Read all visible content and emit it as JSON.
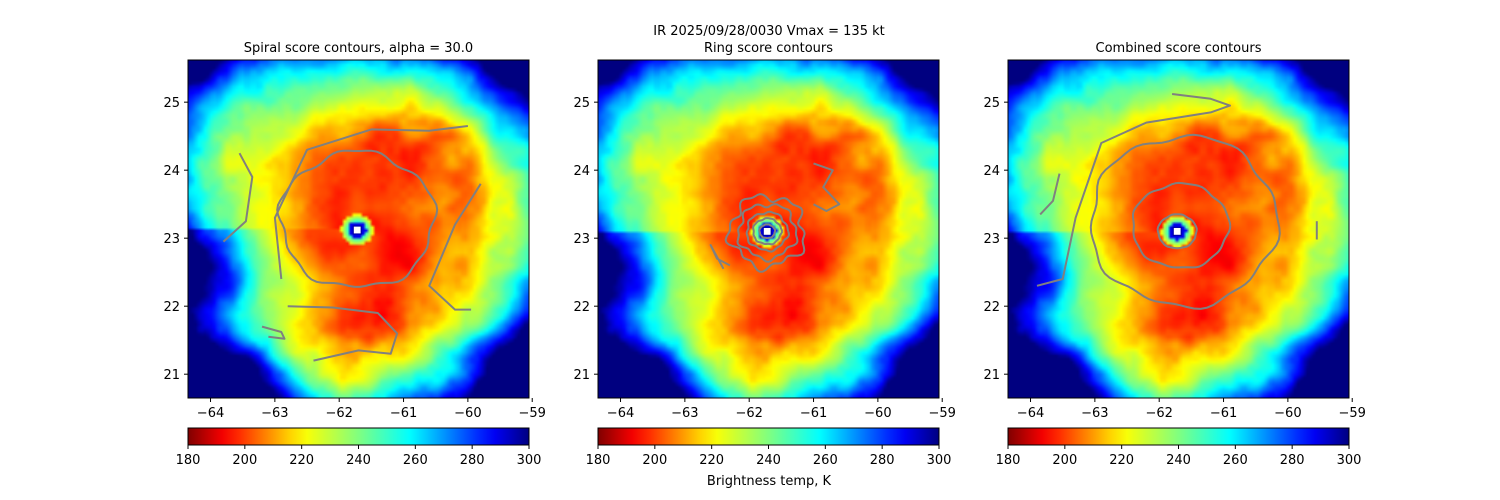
{
  "figure": {
    "suptitle_line1": "IR  2025/09/28/0030    Vmax = 135 kt",
    "colorbar_label": "Brightness temp, K",
    "colormap": "jet",
    "colormap_reversed": true
  },
  "chart_data": [
    {
      "type": "heatmap",
      "title": "Spiral score contours, alpha = 30.0",
      "overlay": "contours",
      "contour_color": "#808080",
      "center_marker": {
        "lon": -61.72,
        "lat": 23.12,
        "shape": "square",
        "color": "#ffffff"
      },
      "xlim": [
        -64.35,
        -59.05
      ],
      "ylim": [
        20.65,
        25.62
      ],
      "xticks": [
        -64,
        -63,
        -62,
        -61,
        -60,
        -59
      ],
      "yticks": [
        21,
        22,
        23,
        24,
        25
      ],
      "colorbar": {
        "range": [
          180,
          300
        ],
        "ticks": [
          180,
          200,
          220,
          240,
          260,
          280,
          300
        ]
      }
    },
    {
      "type": "heatmap",
      "title": "Ring score contours",
      "overlay": "contours",
      "contour_color": "#808080",
      "center_marker": {
        "lon": -61.72,
        "lat": 23.1,
        "shape": "square",
        "color": "#ffffff"
      },
      "xlim": [
        -64.35,
        -59.05
      ],
      "ylim": [
        20.65,
        25.62
      ],
      "xticks": [
        -64,
        -63,
        -62,
        -61,
        -60,
        -59
      ],
      "yticks": [
        21,
        22,
        23,
        24,
        25
      ],
      "colorbar": {
        "range": [
          180,
          300
        ],
        "ticks": [
          180,
          200,
          220,
          240,
          260,
          280,
          300
        ]
      }
    },
    {
      "type": "heatmap",
      "title": "Combined score contours",
      "overlay": "contours",
      "contour_color": "#808080",
      "center_marker": {
        "lon": -61.72,
        "lat": 23.1,
        "shape": "square",
        "color": "#ffffff"
      },
      "xlim": [
        -64.35,
        -59.05
      ],
      "ylim": [
        20.65,
        25.62
      ],
      "xticks": [
        -64,
        -63,
        -62,
        -61,
        -60,
        -59
      ],
      "yticks": [
        21,
        22,
        23,
        24,
        25
      ],
      "colorbar": {
        "range": [
          180,
          300
        ],
        "ticks": [
          180,
          200,
          220,
          240,
          260,
          280,
          300
        ]
      }
    }
  ]
}
